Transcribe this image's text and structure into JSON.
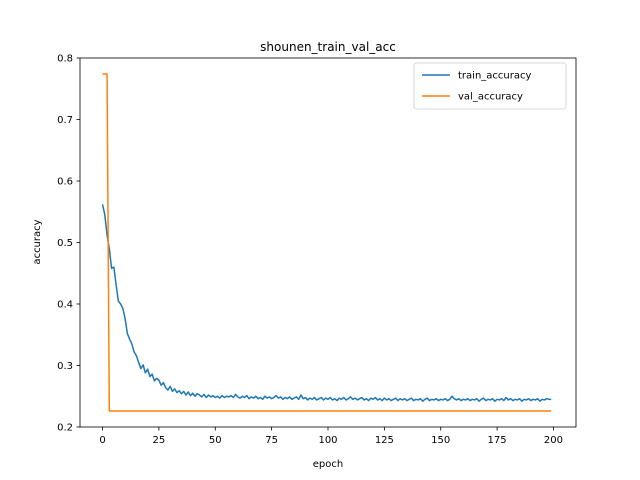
{
  "chart_data": {
    "type": "line",
    "title": "shounen_train_val_acc",
    "xlabel": "epoch",
    "ylabel": "accuracy",
    "xlim": [
      -10,
      210
    ],
    "ylim": [
      0.2,
      0.8
    ],
    "xticks": [
      0,
      25,
      50,
      75,
      100,
      125,
      150,
      175,
      200
    ],
    "yticks": [
      0.2,
      0.3,
      0.4,
      0.5,
      0.6,
      0.7,
      0.8
    ],
    "grid": false,
    "legend_position": "top-right",
    "series": [
      {
        "name": "train_accuracy",
        "color": "#1f77b4",
        "points": [
          [
            0,
            0.562
          ],
          [
            1,
            0.545
          ],
          [
            2,
            0.512
          ],
          [
            3,
            0.49
          ],
          [
            4,
            0.458
          ],
          [
            5,
            0.46
          ],
          [
            6,
            0.432
          ],
          [
            7,
            0.405
          ],
          [
            8,
            0.4
          ],
          [
            9,
            0.393
          ],
          [
            10,
            0.376
          ],
          [
            11,
            0.352
          ],
          [
            12,
            0.343
          ],
          [
            13,
            0.335
          ],
          [
            14,
            0.322
          ],
          [
            15,
            0.316
          ],
          [
            16,
            0.305
          ],
          [
            17,
            0.295
          ],
          [
            18,
            0.301
          ],
          [
            19,
            0.288
          ],
          [
            20,
            0.294
          ],
          [
            21,
            0.282
          ],
          [
            22,
            0.286
          ],
          [
            23,
            0.275
          ],
          [
            24,
            0.279
          ],
          [
            25,
            0.276
          ],
          [
            26,
            0.268
          ],
          [
            27,
            0.272
          ],
          [
            28,
            0.264
          ],
          [
            29,
            0.26
          ],
          [
            30,
            0.266
          ],
          [
            31,
            0.258
          ],
          [
            32,
            0.262
          ],
          [
            33,
            0.256
          ],
          [
            34,
            0.259
          ],
          [
            35,
            0.254
          ],
          [
            36,
            0.258
          ],
          [
            37,
            0.252
          ],
          [
            38,
            0.257
          ],
          [
            39,
            0.251
          ],
          [
            40,
            0.255
          ],
          [
            41,
            0.25
          ],
          [
            42,
            0.254
          ],
          [
            43,
            0.252
          ],
          [
            44,
            0.249
          ],
          [
            45,
            0.253
          ],
          [
            46,
            0.248
          ],
          [
            47,
            0.252
          ],
          [
            48,
            0.249
          ],
          [
            49,
            0.251
          ],
          [
            50,
            0.248
          ],
          [
            51,
            0.25
          ],
          [
            52,
            0.247
          ],
          [
            53,
            0.251
          ],
          [
            54,
            0.248
          ],
          [
            55,
            0.25
          ],
          [
            56,
            0.249
          ],
          [
            57,
            0.251
          ],
          [
            58,
            0.248
          ],
          [
            59,
            0.253
          ],
          [
            60,
            0.249
          ],
          [
            61,
            0.247
          ],
          [
            62,
            0.25
          ],
          [
            63,
            0.248
          ],
          [
            64,
            0.251
          ],
          [
            65,
            0.246
          ],
          [
            66,
            0.249
          ],
          [
            67,
            0.247
          ],
          [
            68,
            0.25
          ],
          [
            69,
            0.246
          ],
          [
            70,
            0.248
          ],
          [
            71,
            0.245
          ],
          [
            72,
            0.25
          ],
          [
            73,
            0.247
          ],
          [
            74,
            0.249
          ],
          [
            75,
            0.246
          ],
          [
            76,
            0.248
          ],
          [
            77,
            0.251
          ],
          [
            78,
            0.247
          ],
          [
            79,
            0.249
          ],
          [
            80,
            0.245
          ],
          [
            81,
            0.248
          ],
          [
            82,
            0.246
          ],
          [
            83,
            0.249
          ],
          [
            84,
            0.245
          ],
          [
            85,
            0.247
          ],
          [
            86,
            0.249
          ],
          [
            87,
            0.245
          ],
          [
            88,
            0.252
          ],
          [
            89,
            0.246
          ],
          [
            90,
            0.248
          ],
          [
            91,
            0.244
          ],
          [
            92,
            0.247
          ],
          [
            93,
            0.245
          ],
          [
            94,
            0.248
          ],
          [
            95,
            0.244
          ],
          [
            96,
            0.246
          ],
          [
            97,
            0.248
          ],
          [
            98,
            0.244
          ],
          [
            99,
            0.247
          ],
          [
            100,
            0.245
          ],
          [
            101,
            0.248
          ],
          [
            102,
            0.244
          ],
          [
            103,
            0.246
          ],
          [
            104,
            0.243
          ],
          [
            105,
            0.247
          ],
          [
            106,
            0.245
          ],
          [
            107,
            0.248
          ],
          [
            108,
            0.244
          ],
          [
            109,
            0.246
          ],
          [
            110,
            0.249
          ],
          [
            111,
            0.245
          ],
          [
            112,
            0.247
          ],
          [
            113,
            0.244
          ],
          [
            114,
            0.246
          ],
          [
            115,
            0.248
          ],
          [
            116,
            0.244
          ],
          [
            117,
            0.246
          ],
          [
            118,
            0.243
          ],
          [
            119,
            0.247
          ],
          [
            120,
            0.245
          ],
          [
            121,
            0.248
          ],
          [
            122,
            0.244
          ],
          [
            123,
            0.246
          ],
          [
            124,
            0.243
          ],
          [
            125,
            0.247
          ],
          [
            126,
            0.244
          ],
          [
            127,
            0.246
          ],
          [
            128,
            0.243
          ],
          [
            129,
            0.245
          ],
          [
            130,
            0.247
          ],
          [
            131,
            0.243
          ],
          [
            132,
            0.246
          ],
          [
            133,
            0.244
          ],
          [
            134,
            0.246
          ],
          [
            135,
            0.243
          ],
          [
            136,
            0.245
          ],
          [
            137,
            0.247
          ],
          [
            138,
            0.243
          ],
          [
            139,
            0.245
          ],
          [
            140,
            0.244
          ],
          [
            141,
            0.246
          ],
          [
            142,
            0.242
          ],
          [
            143,
            0.245
          ],
          [
            144,
            0.247
          ],
          [
            145,
            0.243
          ],
          [
            146,
            0.245
          ],
          [
            147,
            0.244
          ],
          [
            148,
            0.246
          ],
          [
            149,
            0.243
          ],
          [
            150,
            0.245
          ],
          [
            151,
            0.244
          ],
          [
            152,
            0.246
          ],
          [
            153,
            0.243
          ],
          [
            154,
            0.245
          ],
          [
            155,
            0.25
          ],
          [
            156,
            0.246
          ],
          [
            157,
            0.244
          ],
          [
            158,
            0.246
          ],
          [
            159,
            0.243
          ],
          [
            160,
            0.245
          ],
          [
            161,
            0.244
          ],
          [
            162,
            0.246
          ],
          [
            163,
            0.243
          ],
          [
            164,
            0.245
          ],
          [
            165,
            0.244
          ],
          [
            166,
            0.246
          ],
          [
            167,
            0.242
          ],
          [
            168,
            0.245
          ],
          [
            169,
            0.247
          ],
          [
            170,
            0.243
          ],
          [
            171,
            0.245
          ],
          [
            172,
            0.244
          ],
          [
            173,
            0.246
          ],
          [
            174,
            0.242
          ],
          [
            175,
            0.245
          ],
          [
            176,
            0.244
          ],
          [
            177,
            0.246
          ],
          [
            178,
            0.243
          ],
          [
            179,
            0.248
          ],
          [
            180,
            0.244
          ],
          [
            181,
            0.246
          ],
          [
            182,
            0.243
          ],
          [
            183,
            0.245
          ],
          [
            184,
            0.244
          ],
          [
            185,
            0.246
          ],
          [
            186,
            0.242
          ],
          [
            187,
            0.245
          ],
          [
            188,
            0.244
          ],
          [
            189,
            0.246
          ],
          [
            190,
            0.243
          ],
          [
            191,
            0.245
          ],
          [
            192,
            0.244
          ],
          [
            193,
            0.246
          ],
          [
            194,
            0.242
          ],
          [
            195,
            0.245
          ],
          [
            196,
            0.244
          ],
          [
            197,
            0.246
          ],
          [
            198,
            0.245
          ],
          [
            199,
            0.245
          ]
        ]
      },
      {
        "name": "val_accuracy",
        "color": "#ff7f0e",
        "points": [
          [
            0,
            0.774
          ],
          [
            2,
            0.774
          ],
          [
            3,
            0.226
          ],
          [
            199,
            0.226
          ]
        ]
      }
    ]
  }
}
